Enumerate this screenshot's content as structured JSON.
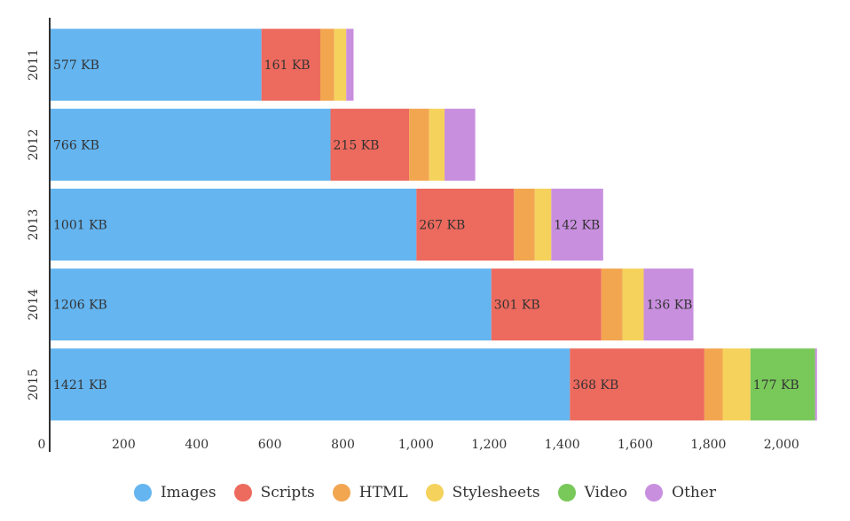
{
  "chart_data": {
    "type": "bar",
    "orientation": "horizontal",
    "stacked": true,
    "categories": [
      "2011",
      "2012",
      "2013",
      "2014",
      "2015"
    ],
    "series": [
      {
        "name": "Images",
        "color": "#64b5f0",
        "values": [
          577,
          766,
          1001,
          1206,
          1421
        ],
        "labels": [
          "577 KB",
          "766 KB",
          "1001 KB",
          "1206 KB",
          "1421 KB"
        ]
      },
      {
        "name": "Scripts",
        "color": "#ed6a5e",
        "values": [
          161,
          215,
          267,
          301,
          368
        ],
        "labels": [
          "161 KB",
          "215 KB",
          "267 KB",
          "301 KB",
          "368 KB"
        ]
      },
      {
        "name": "HTML",
        "color": "#f2a650",
        "values": [
          38,
          55,
          57,
          58,
          50
        ],
        "labels": [
          "",
          "",
          "",
          "",
          ""
        ]
      },
      {
        "name": "Stylesheets",
        "color": "#f5d25c",
        "values": [
          33,
          42,
          45,
          58,
          76
        ],
        "labels": [
          "",
          "",
          "",
          "",
          ""
        ]
      },
      {
        "name": "Video",
        "color": "#78c85a",
        "values": [
          0,
          0,
          0,
          0,
          177
        ],
        "labels": [
          "",
          "",
          "",
          "",
          "177 KB"
        ]
      },
      {
        "name": "Other",
        "color": "#c98fdf",
        "values": [
          20,
          84,
          142,
          136,
          5
        ],
        "labels": [
          "",
          "",
          "142 KB",
          "136 KB",
          ""
        ]
      }
    ],
    "xticks": [
      0,
      200,
      400,
      600,
      800,
      1000,
      1200,
      1400,
      1600,
      1800,
      2000
    ],
    "xtick_labels": [
      "0",
      "200",
      "400",
      "600",
      "800",
      "1,000",
      "1,200",
      "1,400",
      "1,600",
      "1,800",
      "2,000"
    ],
    "xlim": [
      0,
      2100
    ],
    "legend": {
      "placement": "bottom"
    }
  }
}
